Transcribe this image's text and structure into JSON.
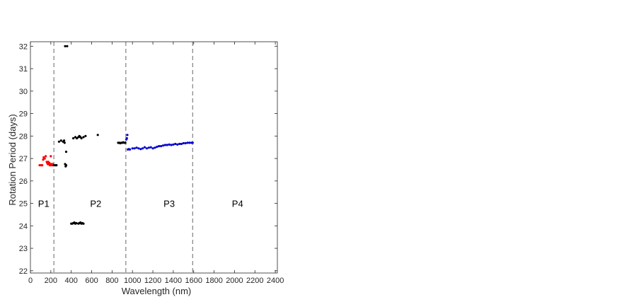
{
  "chart_data": {
    "type": "scatter",
    "title": "",
    "xlabel": "Wavelength (nm)",
    "ylabel": "Rotation Period (days)",
    "xlim": [
      0,
      2420
    ],
    "ylim": [
      21.9,
      32.2
    ],
    "xticks": [
      0,
      200,
      400,
      600,
      800,
      1000,
      1200,
      1400,
      1600,
      1800,
      2000,
      2200,
      2400
    ],
    "yticks": [
      22,
      23,
      24,
      25,
      26,
      27,
      28,
      29,
      30,
      31,
      32
    ],
    "grid": false,
    "boundaries": [
      230,
      935,
      1590
    ],
    "region_labels": [
      {
        "label": "P1",
        "x": 130,
        "y": 24.85
      },
      {
        "label": "P2",
        "x": 640,
        "y": 24.85
      },
      {
        "label": "P3",
        "x": 1360,
        "y": 24.85
      },
      {
        "label": "P4",
        "x": 2030,
        "y": 24.85
      }
    ],
    "colors": {
      "P1": "#ff0000",
      "P2": "#000000",
      "P3": "#0000cc",
      "boundary": "#808080"
    },
    "series": [
      {
        "color": "#ff0000",
        "points": [
          [
            90,
            26.7
          ],
          [
            105,
            26.7
          ],
          [
            115,
            26.7
          ],
          [
            125,
            26.95
          ],
          [
            130,
            27.05
          ],
          [
            140,
            27.0
          ],
          [
            150,
            27.1
          ],
          [
            160,
            26.85
          ],
          [
            165,
            26.8
          ],
          [
            170,
            26.75
          ],
          [
            175,
            26.85
          ],
          [
            180,
            26.75
          ],
          [
            185,
            26.8
          ],
          [
            190,
            26.7
          ],
          [
            195,
            26.75
          ],
          [
            200,
            26.7
          ],
          [
            205,
            26.75
          ],
          [
            210,
            26.72
          ],
          [
            215,
            26.7
          ],
          [
            200,
            27.1
          ],
          [
            220,
            26.75
          ]
        ]
      },
      {
        "color": "#000000",
        "points": [
          [
            230,
            26.7
          ],
          [
            245,
            26.7
          ],
          [
            255,
            26.7
          ],
          [
            280,
            27.75
          ],
          [
            300,
            27.8
          ],
          [
            320,
            27.75
          ],
          [
            330,
            27.8
          ],
          [
            335,
            27.7
          ],
          [
            340,
            26.75
          ],
          [
            345,
            26.65
          ],
          [
            350,
            26.7
          ],
          [
            350,
            27.3
          ],
          [
            340,
            32.0
          ],
          [
            360,
            32.0
          ],
          [
            400,
            24.1
          ],
          [
            410,
            24.1
          ],
          [
            420,
            24.12
          ],
          [
            430,
            24.15
          ],
          [
            440,
            24.1
          ],
          [
            450,
            24.12
          ],
          [
            470,
            24.1
          ],
          [
            480,
            24.12
          ],
          [
            490,
            24.15
          ],
          [
            500,
            24.1
          ],
          [
            510,
            24.12
          ],
          [
            520,
            24.1
          ],
          [
            420,
            27.9
          ],
          [
            440,
            27.95
          ],
          [
            455,
            27.9
          ],
          [
            470,
            27.95
          ],
          [
            480,
            28.0
          ],
          [
            490,
            27.95
          ],
          [
            500,
            27.9
          ],
          [
            520,
            27.95
          ],
          [
            540,
            28.0
          ],
          [
            660,
            28.05
          ],
          [
            860,
            27.7
          ],
          [
            870,
            27.7
          ],
          [
            880,
            27.68
          ],
          [
            890,
            27.7
          ],
          [
            900,
            27.7
          ],
          [
            910,
            27.72
          ],
          [
            920,
            27.7
          ],
          [
            930,
            27.7
          ]
        ]
      },
      {
        "color": "#0000cc",
        "points": [
          [
            940,
            27.85
          ],
          [
            945,
            27.9
          ],
          [
            950,
            28.05
          ],
          [
            955,
            27.4
          ],
          [
            965,
            27.42
          ],
          [
            975,
            27.4
          ],
          [
            1000,
            27.45
          ],
          [
            1020,
            27.45
          ],
          [
            1040,
            27.48
          ],
          [
            1060,
            27.45
          ],
          [
            1080,
            27.42
          ],
          [
            1100,
            27.45
          ],
          [
            1120,
            27.5
          ],
          [
            1140,
            27.45
          ],
          [
            1160,
            27.48
          ],
          [
            1180,
            27.5
          ],
          [
            1200,
            27.45
          ],
          [
            1220,
            27.48
          ],
          [
            1240,
            27.52
          ],
          [
            1260,
            27.55
          ],
          [
            1280,
            27.55
          ],
          [
            1300,
            27.58
          ],
          [
            1320,
            27.6
          ],
          [
            1340,
            27.6
          ],
          [
            1360,
            27.62
          ],
          [
            1380,
            27.6
          ],
          [
            1400,
            27.62
          ],
          [
            1420,
            27.65
          ],
          [
            1440,
            27.62
          ],
          [
            1460,
            27.65
          ],
          [
            1480,
            27.65
          ],
          [
            1500,
            27.68
          ],
          [
            1520,
            27.68
          ],
          [
            1540,
            27.7
          ],
          [
            1560,
            27.7
          ],
          [
            1580,
            27.7
          ],
          [
            1590,
            27.7
          ]
        ]
      }
    ]
  }
}
